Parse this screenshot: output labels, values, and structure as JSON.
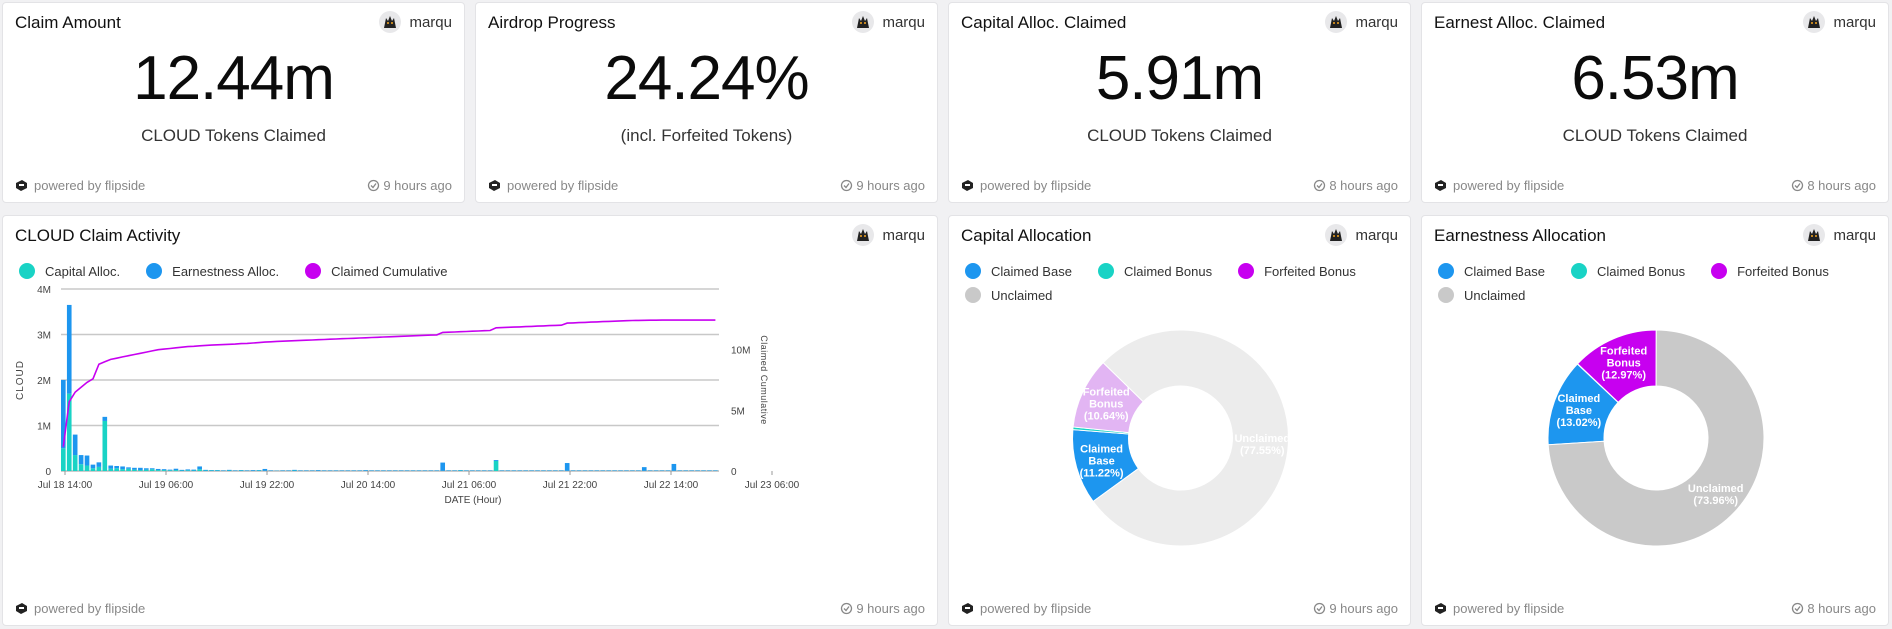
{
  "colors": {
    "teal": "#19d3c5",
    "blue": "#1d96ef",
    "purple": "#c700f0",
    "light_purple": "#e2b5f3",
    "gray": "#c9c9c9",
    "light_gray": "#ececec"
  },
  "stat_cards": [
    {
      "title": "Claim Amount",
      "author": "marqu",
      "value": "12.44m",
      "subtitle": "CLOUD Tokens Claimed",
      "powered": "powered by flipside",
      "updated": "9 hours ago"
    },
    {
      "title": "Airdrop Progress",
      "author": "marqu",
      "value": "24.24%",
      "subtitle": "(incl. Forfeited Tokens)",
      "powered": "powered by flipside",
      "updated": "9 hours ago"
    },
    {
      "title": "Capital Alloc. Claimed",
      "author": "marqu",
      "value": "5.91m",
      "subtitle": "CLOUD Tokens Claimed",
      "powered": "powered by flipside",
      "updated": "8 hours ago"
    },
    {
      "title": "Earnest Alloc. Claimed",
      "author": "marqu",
      "value": "6.53m",
      "subtitle": "CLOUD Tokens Claimed",
      "powered": "powered by flipside",
      "updated": "8 hours ago"
    }
  ],
  "activity_card": {
    "title": "CLOUD Claim Activity",
    "author": "marqu",
    "powered": "powered by flipside",
    "updated": "9 hours ago"
  },
  "capital_card": {
    "title": "Capital Allocation",
    "author": "marqu",
    "powered": "powered by flipside",
    "updated": "9 hours ago"
  },
  "earnest_card": {
    "title": "Earnestness Allocation",
    "author": "marqu",
    "powered": "powered by flipside",
    "updated": "8 hours ago"
  },
  "chart_data": [
    {
      "type": "bar",
      "title": "CLOUD Claim Activity",
      "xlabel": "DATE (Hour)",
      "ylabel": "CLOUD",
      "y2label": "Claimed Cumulative",
      "ylim": [
        0,
        4000000
      ],
      "y2lim": [
        0,
        15000000
      ],
      "yticks": [
        "0",
        "1M",
        "2M",
        "3M",
        "4M"
      ],
      "y2ticks": [
        "0",
        "5M",
        "10M"
      ],
      "xticks": [
        "Jul 18 14:00",
        "Jul 19 06:00",
        "Jul 19 22:00",
        "Jul 20 14:00",
        "Jul 21 06:00",
        "Jul 21 22:00",
        "Jul 22 14:00",
        "Jul 23 06:00"
      ],
      "legend": [
        "Capital Alloc.",
        "Earnestness Alloc.",
        "Claimed Cumulative"
      ],
      "series": [
        {
          "name": "Capital Alloc.",
          "values": [
            500000,
            1700000,
            350000,
            150000,
            120000,
            60000,
            90000,
            1100000,
            50000,
            60000,
            40000,
            50000,
            30000,
            20000,
            30000,
            40000,
            20000,
            20000,
            15000,
            20000,
            10000,
            15000,
            10000,
            40000,
            10000,
            10000,
            10000,
            5000,
            10000,
            5000,
            10000,
            5000,
            5000,
            10000,
            5000,
            5000,
            5000,
            5000,
            5000,
            10000,
            5000,
            5000,
            5000,
            5000,
            5000,
            5000,
            5000,
            5000,
            5000,
            5000,
            5000,
            5000,
            5000,
            5000,
            5000,
            5000,
            5000,
            5000,
            5000,
            5000,
            5000,
            5000,
            5000,
            5000,
            5000,
            5000,
            5000,
            10000,
            5000,
            5000,
            5000,
            5000,
            5000,
            220000,
            5000,
            5000,
            5000,
            5000,
            5000,
            5000,
            5000,
            5000,
            5000,
            5000,
            5000,
            5000,
            5000,
            5000,
            5000,
            5000,
            5000,
            5000,
            5000,
            5000,
            5000,
            5000,
            5000,
            5000,
            5000,
            5000,
            5000,
            5000,
            5000,
            5000,
            5000,
            5000,
            5000,
            5000,
            5000,
            5000,
            5000
          ]
        },
        {
          "name": "Earnestness Alloc.",
          "values": [
            1500000,
            1950000,
            450000,
            200000,
            220000,
            80000,
            100000,
            90000,
            70000,
            50000,
            60000,
            30000,
            40000,
            50000,
            30000,
            20000,
            25000,
            20000,
            15000,
            30000,
            15000,
            20000,
            20000,
            60000,
            15000,
            10000,
            10000,
            10000,
            15000,
            10000,
            10000,
            10000,
            15000,
            10000,
            40000,
            10000,
            5000,
            10000,
            10000,
            15000,
            10000,
            10000,
            10000,
            15000,
            10000,
            10000,
            10000,
            10000,
            10000,
            10000,
            10000,
            15000,
            10000,
            10000,
            10000,
            10000,
            10000,
            10000,
            10000,
            10000,
            10000,
            10000,
            10000,
            10000,
            180000,
            10000,
            10000,
            10000,
            10000,
            10000,
            10000,
            10000,
            10000,
            20000,
            10000,
            10000,
            10000,
            10000,
            10000,
            10000,
            10000,
            10000,
            10000,
            10000,
            10000,
            170000,
            10000,
            10000,
            10000,
            10000,
            10000,
            10000,
            10000,
            10000,
            10000,
            10000,
            10000,
            10000,
            80000,
            10000,
            10000,
            10000,
            10000,
            150000,
            10000,
            10000,
            10000,
            10000,
            10000,
            10000,
            10000
          ]
        },
        {
          "name": "Claimed Cumulative",
          "values": [
            2000000,
            5700000,
            6500000,
            6900000,
            7300000,
            7600000,
            8800000,
            9000000,
            9200000,
            9300000,
            9400000,
            9500000,
            9600000,
            9700000,
            9800000,
            9900000,
            10000000,
            10050000,
            10100000,
            10150000,
            10200000,
            10250000,
            10280000,
            10320000,
            10350000,
            10380000,
            10400000,
            10420000,
            10440000,
            10460000,
            10500000,
            10520000,
            10550000,
            10580000,
            10620000,
            10650000,
            10680000,
            10700000,
            10720000,
            10740000,
            10760000,
            10780000,
            10800000,
            10820000,
            10840000,
            10860000,
            10880000,
            10900000,
            10920000,
            10940000,
            10960000,
            10980000,
            11000000,
            11020000,
            11040000,
            11060000,
            11080000,
            11100000,
            11120000,
            11140000,
            11160000,
            11180000,
            11200000,
            11220000,
            11420000,
            11440000,
            11460000,
            11480000,
            11500000,
            11520000,
            11540000,
            11560000,
            11580000,
            11800000,
            11820000,
            11840000,
            11860000,
            11880000,
            11900000,
            11920000,
            11940000,
            11960000,
            11980000,
            12000000,
            12020000,
            12190000,
            12210000,
            12230000,
            12250000,
            12270000,
            12290000,
            12310000,
            12330000,
            12350000,
            12370000,
            12390000,
            12400000,
            12410000,
            12420000,
            12425000,
            12430000,
            12435000,
            12438000,
            12440000,
            12440000,
            12440000,
            12440000,
            12440000,
            12440000,
            12440000,
            12440000
          ]
        }
      ]
    },
    {
      "type": "pie",
      "title": "Capital Allocation",
      "legend": [
        "Claimed Base",
        "Claimed Bonus",
        "Forfeited Bonus",
        "Unclaimed"
      ],
      "slices": [
        {
          "name": "Claimed Base",
          "value": 11.22,
          "label": "Claimed Base (11.22%)",
          "display": [
            "Claimed",
            "Base",
            "(11.22%)"
          ]
        },
        {
          "name": "Claimed Bonus",
          "value": 0.39,
          "label": "",
          "display": []
        },
        {
          "name": "Forfeited Bonus",
          "value": 10.64,
          "label": "Forfeited Bonus (10.64%)",
          "display": [
            "Forfeited",
            "Bonus",
            "(10.64%)"
          ]
        },
        {
          "name": "Unclaimed",
          "value": 77.55,
          "label": "Unclaimed (77.55%)",
          "display": [
            "Unclaimed",
            "(77.55%)"
          ]
        }
      ]
    },
    {
      "type": "pie",
      "title": "Earnestness Allocation",
      "legend": [
        "Claimed Base",
        "Claimed Bonus",
        "Forfeited Bonus",
        "Unclaimed"
      ],
      "slices": [
        {
          "name": "Claimed Base",
          "value": 13.02,
          "label": "Claimed Base (13.02%)",
          "display": [
            "Claimed",
            "Base",
            "(13.02%)"
          ]
        },
        {
          "name": "Claimed Bonus",
          "value": 0.05,
          "label": "",
          "display": []
        },
        {
          "name": "Forfeited Bonus",
          "value": 12.97,
          "label": "Forfeited Bonus (12.97%)",
          "display": [
            "Forfeited",
            "Bonus",
            "(12.97%)"
          ]
        },
        {
          "name": "Unclaimed",
          "value": 73.96,
          "label": "Unclaimed (73.96%)",
          "display": [
            "Unclaimed",
            "(73.96%)"
          ]
        }
      ]
    }
  ]
}
